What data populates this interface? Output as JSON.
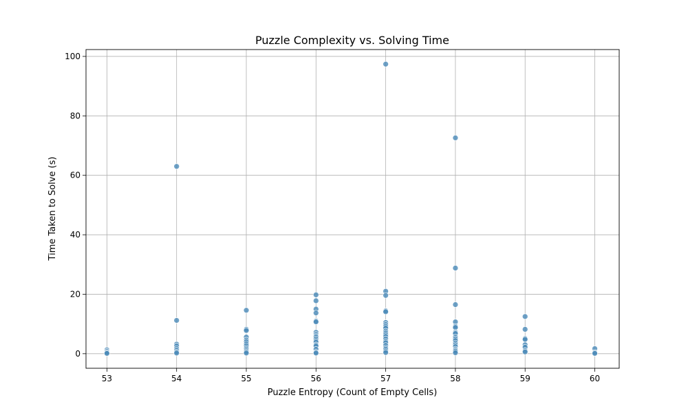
{
  "chart_data": {
    "type": "scatter",
    "title": "Puzzle Complexity vs. Solving Time",
    "xlabel": "Puzzle Entropy (Count of Empty Cells)",
    "ylabel": "Time Taken to Solve (s)",
    "xlim": [
      52.7,
      60.35
    ],
    "ylim": [
      -4.9,
      102.3
    ],
    "xticks": [
      53,
      54,
      55,
      56,
      57,
      58,
      59,
      60
    ],
    "yticks": [
      0,
      20,
      40,
      60,
      80,
      100
    ],
    "grid": true,
    "point_color": "#4a8ab8",
    "point_edge_color": "#ffffff",
    "points": [
      {
        "x": 53,
        "y": 1.3
      },
      {
        "x": 53,
        "y": 0.8
      },
      {
        "x": 53,
        "y": 0.4
      },
      {
        "x": 53,
        "y": 0.1
      },
      {
        "x": 54,
        "y": 63.0
      },
      {
        "x": 54,
        "y": 11.2
      },
      {
        "x": 54,
        "y": 3.2
      },
      {
        "x": 54,
        "y": 2.6
      },
      {
        "x": 54,
        "y": 1.8
      },
      {
        "x": 54,
        "y": 1.2
      },
      {
        "x": 54,
        "y": 0.6
      },
      {
        "x": 54,
        "y": 0.2
      },
      {
        "x": 55,
        "y": 14.6
      },
      {
        "x": 55,
        "y": 8.2
      },
      {
        "x": 55,
        "y": 7.8
      },
      {
        "x": 55,
        "y": 5.6
      },
      {
        "x": 55,
        "y": 4.6
      },
      {
        "x": 55,
        "y": 4.0
      },
      {
        "x": 55,
        "y": 3.3
      },
      {
        "x": 55,
        "y": 2.7
      },
      {
        "x": 55,
        "y": 2.0
      },
      {
        "x": 55,
        "y": 1.5
      },
      {
        "x": 55,
        "y": 1.0
      },
      {
        "x": 55,
        "y": 0.6
      },
      {
        "x": 55,
        "y": 0.2
      },
      {
        "x": 56,
        "y": 19.8
      },
      {
        "x": 56,
        "y": 17.8
      },
      {
        "x": 56,
        "y": 15.0
      },
      {
        "x": 56,
        "y": 13.7
      },
      {
        "x": 56,
        "y": 11.0
      },
      {
        "x": 56,
        "y": 10.7
      },
      {
        "x": 56,
        "y": 7.2
      },
      {
        "x": 56,
        "y": 6.5
      },
      {
        "x": 56,
        "y": 6.0
      },
      {
        "x": 56,
        "y": 5.6
      },
      {
        "x": 56,
        "y": 5.0
      },
      {
        "x": 56,
        "y": 4.4
      },
      {
        "x": 56,
        "y": 3.9
      },
      {
        "x": 56,
        "y": 3.0
      },
      {
        "x": 56,
        "y": 2.6
      },
      {
        "x": 56,
        "y": 1.5
      },
      {
        "x": 56,
        "y": 0.5
      },
      {
        "x": 56,
        "y": 0.2
      },
      {
        "x": 57,
        "y": 97.4
      },
      {
        "x": 57,
        "y": 21.0
      },
      {
        "x": 57,
        "y": 19.6
      },
      {
        "x": 57,
        "y": 14.4
      },
      {
        "x": 57,
        "y": 14.1
      },
      {
        "x": 57,
        "y": 10.5
      },
      {
        "x": 57,
        "y": 9.8
      },
      {
        "x": 57,
        "y": 9.2
      },
      {
        "x": 57,
        "y": 8.6
      },
      {
        "x": 57,
        "y": 7.6
      },
      {
        "x": 57,
        "y": 7.0
      },
      {
        "x": 57,
        "y": 6.4
      },
      {
        "x": 57,
        "y": 5.8
      },
      {
        "x": 57,
        "y": 5.0
      },
      {
        "x": 57,
        "y": 4.2
      },
      {
        "x": 57,
        "y": 3.7
      },
      {
        "x": 57,
        "y": 2.8
      },
      {
        "x": 57,
        "y": 2.0
      },
      {
        "x": 57,
        "y": 1.5
      },
      {
        "x": 57,
        "y": 0.9
      },
      {
        "x": 57,
        "y": 0.4
      },
      {
        "x": 58,
        "y": 72.6
      },
      {
        "x": 58,
        "y": 28.8
      },
      {
        "x": 58,
        "y": 16.5
      },
      {
        "x": 58,
        "y": 10.7
      },
      {
        "x": 58,
        "y": 9.2
      },
      {
        "x": 58,
        "y": 8.8
      },
      {
        "x": 58,
        "y": 7.2
      },
      {
        "x": 58,
        "y": 6.8
      },
      {
        "x": 58,
        "y": 5.6
      },
      {
        "x": 58,
        "y": 5.0
      },
      {
        "x": 58,
        "y": 4.4
      },
      {
        "x": 58,
        "y": 3.6
      },
      {
        "x": 58,
        "y": 3.0
      },
      {
        "x": 58,
        "y": 2.4
      },
      {
        "x": 58,
        "y": 1.6
      },
      {
        "x": 58,
        "y": 1.2
      },
      {
        "x": 58,
        "y": 0.8
      },
      {
        "x": 58,
        "y": 0.3
      },
      {
        "x": 59,
        "y": 12.5
      },
      {
        "x": 59,
        "y": 8.2
      },
      {
        "x": 59,
        "y": 5.1
      },
      {
        "x": 59,
        "y": 4.8
      },
      {
        "x": 59,
        "y": 3.0
      },
      {
        "x": 59,
        "y": 2.2
      },
      {
        "x": 59,
        "y": 1.0
      },
      {
        "x": 59,
        "y": 0.6
      },
      {
        "x": 60,
        "y": 1.7
      },
      {
        "x": 60,
        "y": 0.4
      },
      {
        "x": 60,
        "y": 0.1
      }
    ]
  }
}
